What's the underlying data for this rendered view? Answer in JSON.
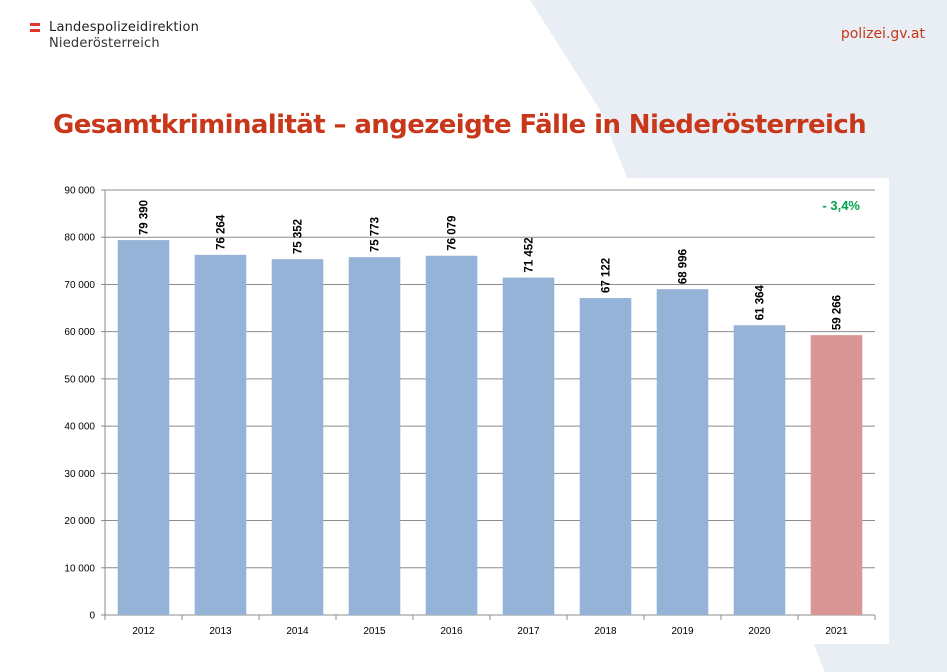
{
  "header": {
    "org_line1": "Landespolizeidirektion",
    "org_line2": "Niederösterreich",
    "site_url": "polizei.gv.at"
  },
  "slide": {
    "title": "Gesamtkriminalität – angezeigte Fälle in Niederösterreich"
  },
  "colors": {
    "brand_red": "#c8371a",
    "flag_red": "#e2362b",
    "bar_blue": "#95b3d7",
    "bar_highlight": "#d99694",
    "annotation_green": "#00a14b",
    "bg_shape": "#e8eef4",
    "gridline": "#8c8c8c"
  },
  "chart_data": {
    "type": "bar",
    "categories": [
      "2012",
      "2013",
      "2014",
      "2015",
      "2016",
      "2017",
      "2018",
      "2019",
      "2020",
      "2021"
    ],
    "values": [
      79390,
      76264,
      75352,
      75773,
      76079,
      71452,
      67122,
      68996,
      61364,
      59266
    ],
    "data_labels": [
      "79 390",
      "76 264",
      "75 352",
      "75 773",
      "76 079",
      "71 452",
      "67 122",
      "68 996",
      "61 364",
      "59 266"
    ],
    "highlight_category": "2021",
    "ylim": [
      0,
      90000
    ],
    "yticks": [
      0,
      10000,
      20000,
      30000,
      40000,
      50000,
      60000,
      70000,
      80000,
      90000
    ],
    "ytick_labels": [
      "0",
      "10 000",
      "20 000",
      "30 000",
      "40 000",
      "50 000",
      "60 000",
      "70 000",
      "80 000",
      "90 000"
    ],
    "annotation": "- 3,4%",
    "title": "",
    "xlabel": "",
    "ylabel": "",
    "grid": true,
    "legend": "none"
  }
}
